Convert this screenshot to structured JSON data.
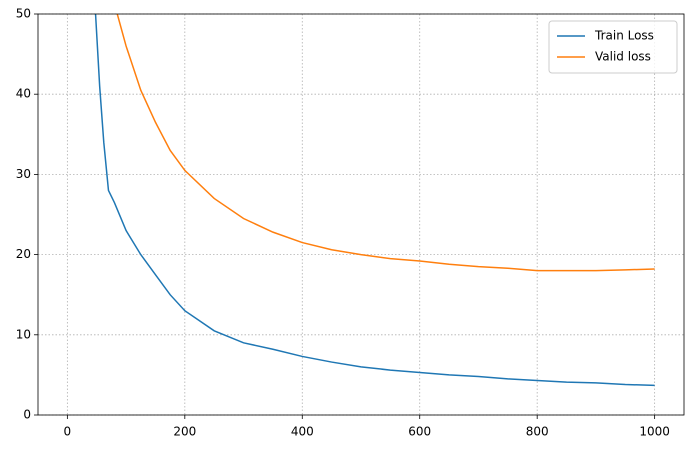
{
  "chart_data": {
    "type": "line",
    "series": [
      {
        "name": "Train Loss",
        "color": "#1f77b4",
        "x": [
          48,
          55,
          62,
          70,
          80,
          100,
          125,
          150,
          175,
          200,
          250,
          300,
          350,
          400,
          450,
          500,
          550,
          600,
          650,
          700,
          750,
          800,
          850,
          900,
          950,
          1000
        ],
        "values": [
          50,
          41,
          34,
          28,
          26.5,
          23,
          20,
          17.5,
          15,
          13,
          10.5,
          9,
          8.2,
          7.3,
          6.6,
          6,
          5.6,
          5.3,
          5,
          4.8,
          4.5,
          4.3,
          4.1,
          4,
          3.8,
          3.7
        ]
      },
      {
        "name": "Valid loss",
        "color": "#ff7f0e",
        "x": [
          85,
          100,
          125,
          150,
          175,
          200,
          250,
          300,
          350,
          400,
          450,
          500,
          550,
          600,
          650,
          700,
          750,
          800,
          850,
          900,
          950,
          1000
        ],
        "values": [
          50,
          46,
          40.5,
          36.5,
          33,
          30.5,
          27,
          24.5,
          22.8,
          21.5,
          20.6,
          20,
          19.5,
          19.2,
          18.8,
          18.5,
          18.3,
          18,
          18,
          18,
          18.1,
          18.2
        ]
      }
    ],
    "xlim": [
      -50,
      1050
    ],
    "ylim": [
      0,
      50
    ],
    "xticks": [
      0,
      200,
      400,
      600,
      800,
      1000
    ],
    "yticks": [
      0,
      10,
      20,
      30,
      40,
      50
    ],
    "grid": true,
    "legend": "upper right"
  }
}
